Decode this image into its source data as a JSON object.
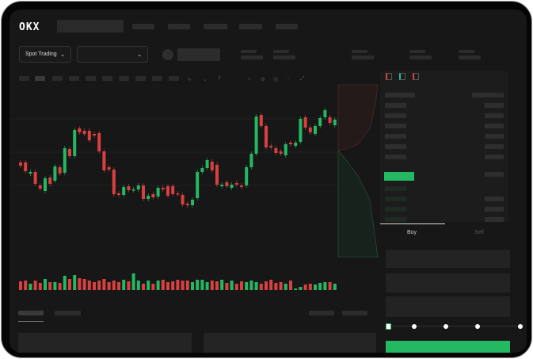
{
  "brand": {
    "logo": "OKX"
  },
  "toolbar": {
    "market_select": "Spot Trading",
    "pair_select": ""
  },
  "order_form": {
    "buy_tab": "Buy",
    "sell_tab": "Sell",
    "leverage_position": 0
  },
  "colors": {
    "up": "#25b862",
    "down": "#d94040",
    "background": "#171717",
    "panel": "#1c1c1c"
  },
  "icons": {
    "market_chevron": "chevron-down-icon",
    "pair_chevron": "chevron-down-icon"
  },
  "candles": [
    [
      62,
      58
    ],
    [
      62,
      51
    ],
    [
      48,
      50
    ],
    [
      50,
      35
    ],
    [
      33,
      29
    ],
    [
      26,
      42
    ],
    [
      43,
      35
    ],
    [
      39,
      57
    ],
    [
      56,
      48
    ],
    [
      49,
      80
    ],
    [
      79,
      70
    ],
    [
      70,
      103
    ],
    [
      105,
      100
    ],
    [
      102,
      98
    ],
    [
      102,
      90
    ],
    [
      98,
      96
    ],
    [
      99,
      76
    ],
    [
      76,
      52
    ],
    [
      56,
      53
    ],
    [
      53,
      22
    ],
    [
      23,
      21
    ],
    [
      21,
      31
    ],
    [
      32,
      27
    ],
    [
      27,
      28
    ],
    [
      28,
      33
    ],
    [
      33,
      16
    ],
    [
      16,
      20
    ],
    [
      22,
      18
    ],
    [
      19,
      30
    ],
    [
      30,
      28
    ],
    [
      32,
      20
    ],
    [
      32,
      22
    ],
    [
      23,
      22
    ],
    [
      21,
      9
    ],
    [
      10,
      8
    ],
    [
      8,
      15
    ],
    [
      17,
      50
    ],
    [
      50,
      55
    ],
    [
      55,
      65
    ],
    [
      63,
      52
    ],
    [
      59,
      34
    ],
    [
      32,
      34
    ],
    [
      37,
      32
    ],
    [
      30,
      34
    ],
    [
      36,
      34
    ],
    [
      33,
      31
    ],
    [
      33,
      56
    ],
    [
      56,
      73
    ],
    [
      73,
      120
    ],
    [
      122,
      108
    ],
    [
      108,
      81
    ],
    [
      83,
      81
    ],
    [
      80,
      74
    ],
    [
      76,
      73
    ],
    [
      71,
      85
    ],
    [
      87,
      85
    ],
    [
      83,
      87
    ],
    [
      88,
      117
    ],
    [
      119,
      106
    ],
    [
      106,
      100
    ],
    [
      98,
      108
    ],
    [
      108,
      118
    ],
    [
      119,
      128
    ],
    [
      119,
      112
    ],
    [
      109,
      116
    ]
  ],
  "volumes": [
    11,
    12,
    8,
    12,
    9,
    14,
    10,
    10,
    9,
    18,
    14,
    19,
    15,
    14,
    12,
    10,
    12,
    14,
    10,
    12,
    10,
    13,
    11,
    21,
    12,
    8,
    12,
    8,
    12,
    13,
    10,
    11,
    13,
    12,
    12,
    10,
    13,
    13,
    10,
    12,
    11,
    13,
    9,
    12,
    8,
    11,
    10,
    12,
    10,
    8,
    11,
    13,
    9,
    10,
    8,
    12,
    2,
    4,
    7,
    8,
    7,
    9,
    10,
    10,
    8
  ]
}
